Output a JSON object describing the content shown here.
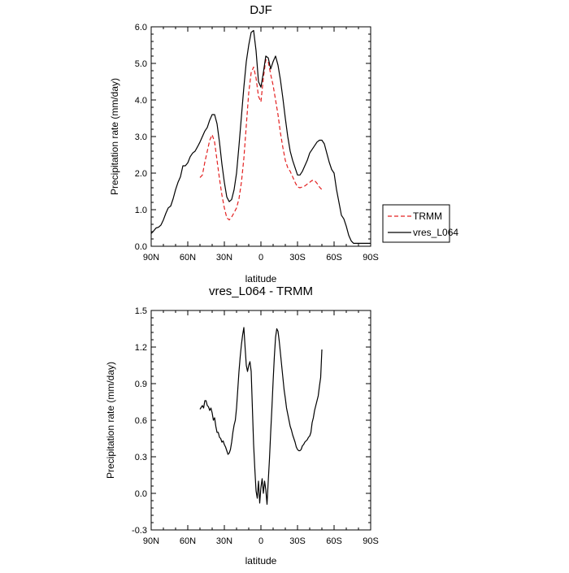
{
  "chart_data": [
    {
      "type": "line",
      "title": "DJF",
      "xlabel": "latitude",
      "ylabel": "Precipitation rate (mm/day)",
      "xlim": [
        90,
        -90
      ],
      "ylim": [
        0,
        6
      ],
      "xticks": [
        90,
        60,
        30,
        0,
        -30,
        -60,
        -90
      ],
      "xtick_labels": [
        "90N",
        "60N",
        "30N",
        "0",
        "30S",
        "60S",
        "90S"
      ],
      "yticks": [
        0,
        1,
        2,
        3,
        4,
        5,
        6
      ],
      "ytick_labels": [
        "0.0",
        "1.0",
        "2.0",
        "3.0",
        "4.0",
        "5.0",
        "6.0"
      ],
      "legend": {
        "placement": "right",
        "entries": [
          "TRMM",
          "vres_L064"
        ]
      },
      "series": [
        {
          "name": "TRMM",
          "color": "#e32020",
          "dash": "dashed",
          "x": [
            50,
            48,
            46,
            44,
            42,
            40,
            38,
            36,
            34,
            32,
            30,
            28,
            26,
            24,
            22,
            20,
            18,
            16,
            14,
            12,
            10,
            8,
            6,
            4,
            2,
            0,
            -2,
            -4,
            -6,
            -8,
            -10,
            -12,
            -14,
            -16,
            -18,
            -20,
            -22,
            -24,
            -26,
            -28,
            -30,
            -32,
            -34,
            -36,
            -38,
            -40,
            -42,
            -44,
            -46,
            -48,
            -50
          ],
          "y": [
            1.88,
            1.95,
            2.3,
            2.6,
            2.9,
            3.05,
            2.85,
            2.35,
            1.85,
            1.4,
            1.05,
            0.78,
            0.72,
            0.8,
            0.92,
            1.05,
            1.3,
            1.75,
            2.4,
            3.3,
            4.2,
            4.75,
            4.9,
            4.6,
            4.1,
            3.95,
            4.6,
            5.1,
            5.05,
            4.7,
            4.4,
            4.0,
            3.6,
            3.1,
            2.7,
            2.35,
            2.15,
            2.05,
            1.9,
            1.75,
            1.62,
            1.6,
            1.62,
            1.65,
            1.7,
            1.75,
            1.8,
            1.8,
            1.72,
            1.62,
            1.55
          ]
        },
        {
          "name": "vres_L064",
          "color": "#000000",
          "dash": "solid",
          "x": [
            90,
            88,
            86,
            84,
            82,
            80,
            78,
            76,
            74,
            72,
            70,
            68,
            66,
            64,
            62,
            60,
            58,
            56,
            54,
            52,
            50,
            48,
            46,
            44,
            42,
            40,
            38,
            36,
            34,
            32,
            30,
            28,
            26,
            24,
            22,
            20,
            18,
            16,
            14,
            12,
            10,
            8,
            6,
            4,
            2,
            0,
            -2,
            -4,
            -6,
            -8,
            -10,
            -12,
            -14,
            -16,
            -18,
            -20,
            -22,
            -24,
            -26,
            -28,
            -30,
            -32,
            -34,
            -36,
            -38,
            -40,
            -42,
            -44,
            -46,
            -48,
            -50,
            -52,
            -54,
            -56,
            -58,
            -60,
            -62,
            -64,
            -66,
            -68,
            -70,
            -72,
            -74,
            -76,
            -78,
            -80,
            -82,
            -84,
            -86,
            -88,
            -90
          ],
          "y": [
            0.35,
            0.42,
            0.5,
            0.52,
            0.58,
            0.72,
            0.9,
            1.05,
            1.1,
            1.3,
            1.55,
            1.75,
            1.9,
            2.2,
            2.2,
            2.28,
            2.45,
            2.55,
            2.6,
            2.72,
            2.85,
            3.0,
            3.15,
            3.25,
            3.45,
            3.6,
            3.6,
            3.35,
            2.85,
            2.25,
            1.75,
            1.35,
            1.22,
            1.28,
            1.55,
            2.0,
            2.75,
            3.55,
            4.35,
            5.05,
            5.5,
            5.85,
            5.9,
            5.35,
            4.5,
            4.35,
            4.75,
            5.2,
            5.15,
            4.85,
            5.05,
            5.2,
            4.95,
            4.55,
            4.05,
            3.5,
            3.0,
            2.6,
            2.35,
            2.15,
            1.95,
            1.95,
            2.05,
            2.2,
            2.35,
            2.55,
            2.65,
            2.75,
            2.85,
            2.9,
            2.9,
            2.8,
            2.55,
            2.3,
            2.1,
            2.0,
            1.55,
            1.2,
            0.85,
            0.75,
            0.55,
            0.3,
            0.15,
            0.08,
            0.08,
            0.08,
            0.08,
            0.08,
            0.08,
            0.08,
            0.08
          ]
        }
      ]
    },
    {
      "type": "line",
      "title": "vres_L064 - TRMM",
      "xlabel": "latitude",
      "ylabel": "Precipitation rate (mm/day)",
      "xlim": [
        90,
        -90
      ],
      "ylim": [
        -0.3,
        1.5
      ],
      "xticks": [
        90,
        60,
        30,
        0,
        -30,
        -60,
        -90
      ],
      "xtick_labels": [
        "90N",
        "60N",
        "30N",
        "0",
        "30S",
        "60S",
        "90S"
      ],
      "yticks": [
        -0.3,
        0.0,
        0.3,
        0.6,
        0.9,
        1.2,
        1.5
      ],
      "ytick_labels": [
        "-0.3",
        "0.0",
        "0.3",
        "0.6",
        "0.9",
        "1.2",
        "1.5"
      ],
      "series": [
        {
          "name": "vres_L064 - TRMM",
          "color": "#000000",
          "dash": "solid",
          "x": [
            50,
            48,
            47,
            46,
            45,
            44,
            43,
            42,
            41,
            40,
            39,
            38,
            37,
            36,
            35,
            34,
            33,
            32,
            31,
            30,
            29,
            28,
            27,
            26,
            25,
            24,
            23,
            22,
            21,
            20,
            19,
            18,
            17,
            16,
            15,
            14,
            13,
            12,
            11,
            10,
            9,
            8,
            7,
            6,
            5,
            4,
            3,
            2,
            1,
            0,
            -1,
            -2,
            -3,
            -4,
            -5,
            -6,
            -7,
            -8,
            -9,
            -10,
            -11,
            -12,
            -13,
            -14,
            -15,
            -16,
            -17,
            -18,
            -19,
            -20,
            -21,
            -22,
            -23,
            -24,
            -25,
            -26,
            -27,
            -28,
            -29,
            -30,
            -31,
            -32,
            -33,
            -34,
            -35,
            -36,
            -37,
            -38,
            -39,
            -40,
            -41,
            -42,
            -43,
            -44,
            -45,
            -46,
            -47,
            -48,
            -49,
            -50
          ],
          "y": [
            0.69,
            0.72,
            0.7,
            0.76,
            0.76,
            0.72,
            0.71,
            0.68,
            0.7,
            0.66,
            0.6,
            0.62,
            0.55,
            0.5,
            0.5,
            0.46,
            0.45,
            0.42,
            0.43,
            0.4,
            0.38,
            0.35,
            0.32,
            0.33,
            0.36,
            0.42,
            0.5,
            0.56,
            0.6,
            0.7,
            0.85,
            1.0,
            1.12,
            1.22,
            1.3,
            1.36,
            1.2,
            1.05,
            1.0,
            1.05,
            1.08,
            1.0,
            0.7,
            0.4,
            0.2,
            0.02,
            -0.04,
            0.1,
            -0.08,
            0.05,
            0.12,
            0.0,
            0.1,
            0.03,
            -0.09,
            0.1,
            0.28,
            0.5,
            0.7,
            0.92,
            1.12,
            1.28,
            1.35,
            1.33,
            1.25,
            1.15,
            1.05,
            0.95,
            0.85,
            0.78,
            0.7,
            0.65,
            0.6,
            0.55,
            0.52,
            0.48,
            0.45,
            0.42,
            0.38,
            0.36,
            0.35,
            0.35,
            0.36,
            0.39,
            0.4,
            0.42,
            0.43,
            0.44,
            0.46,
            0.47,
            0.5,
            0.58,
            0.62,
            0.68,
            0.72,
            0.76,
            0.8,
            0.88,
            0.95,
            1.18
          ]
        }
      ]
    }
  ]
}
